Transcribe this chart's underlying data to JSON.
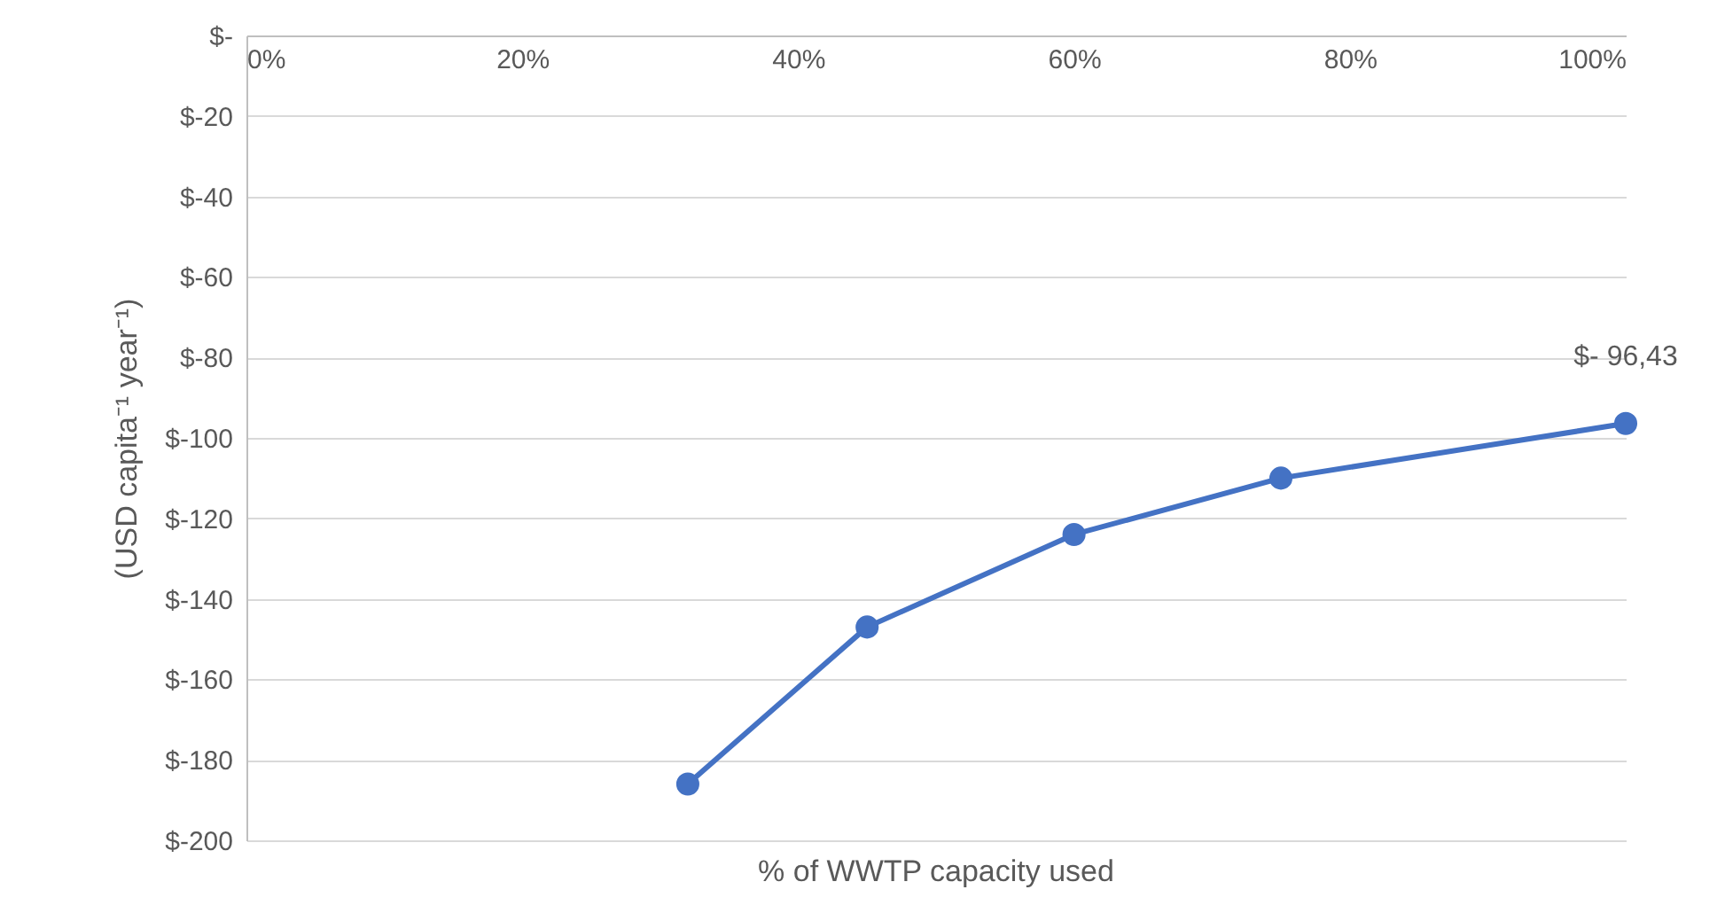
{
  "chart_data": {
    "type": "line",
    "xlabel": "% of WWTP capacity used",
    "ylabel": "(USD capita⁻¹ year⁻¹)",
    "x": [
      32,
      45,
      60,
      75,
      100
    ],
    "series": [
      {
        "color": "#4472c4",
        "values": [
          -186,
          -147,
          -124,
          -110,
          -96.43
        ],
        "value_labels": [
          null,
          null,
          null,
          null,
          "$- 96,43"
        ]
      }
    ],
    "xlim": [
      0,
      100
    ],
    "xticks": [
      {
        "value": 0,
        "label": "0%"
      },
      {
        "value": 20,
        "label": "20%"
      },
      {
        "value": 40,
        "label": "40%"
      },
      {
        "value": 60,
        "label": "60%"
      },
      {
        "value": 80,
        "label": "80%"
      },
      {
        "value": 100,
        "label": "100%"
      }
    ],
    "ylim": [
      -200,
      0
    ],
    "yticks": [
      {
        "value": 0,
        "label": "$-"
      },
      {
        "value": -20,
        "label": "$-20"
      },
      {
        "value": -40,
        "label": "$-40"
      },
      {
        "value": -60,
        "label": "$-60"
      },
      {
        "value": -80,
        "label": "$-80"
      },
      {
        "value": -100,
        "label": "$-100"
      },
      {
        "value": -120,
        "label": "$-120"
      },
      {
        "value": -140,
        "label": "$-140"
      },
      {
        "value": -160,
        "label": "$-160"
      },
      {
        "value": -180,
        "label": "$-180"
      },
      {
        "value": -200,
        "label": "$-200"
      }
    ],
    "grid": "y",
    "marker": "circle",
    "line_style": "solid"
  }
}
